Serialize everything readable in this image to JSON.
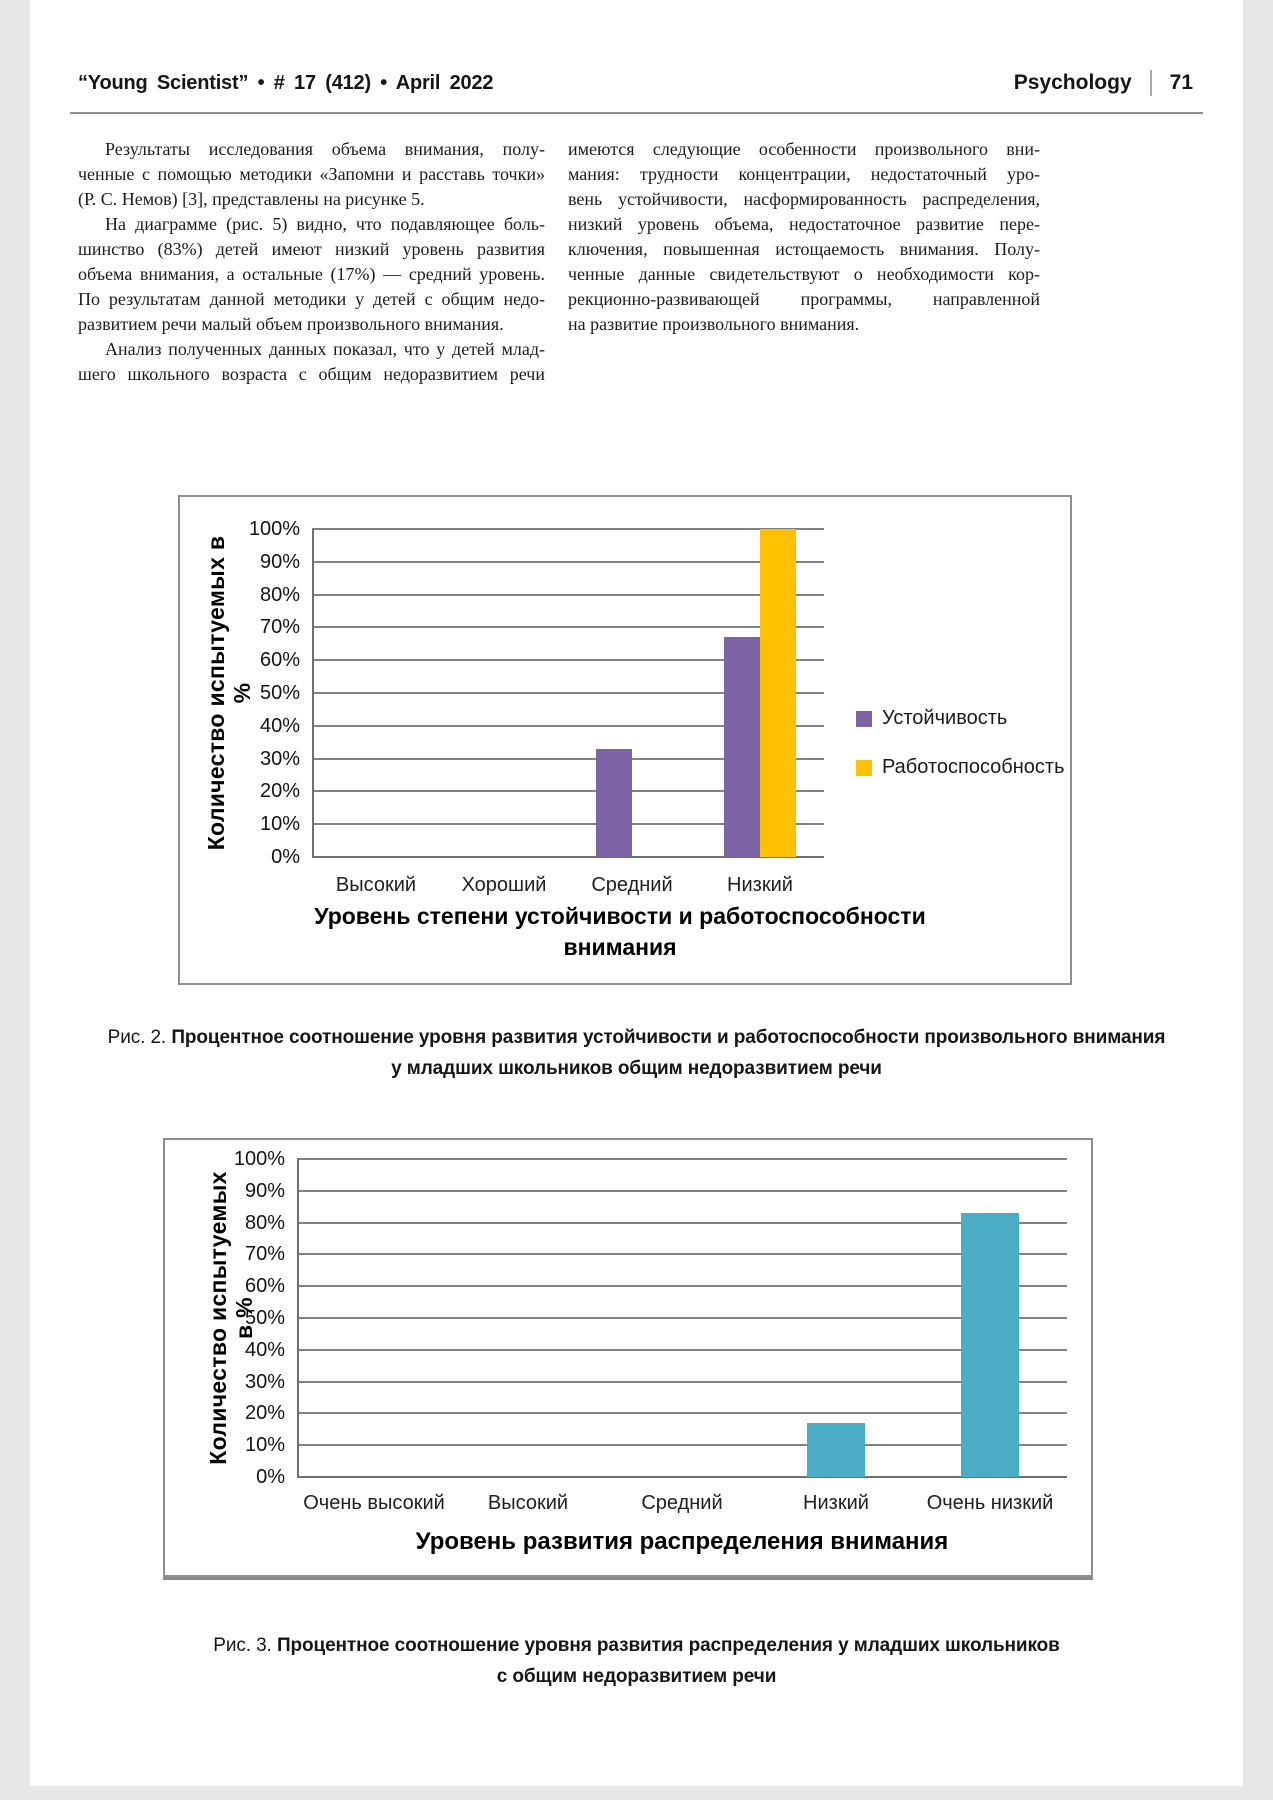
{
  "header": {
    "left": "“Young Scientist”  •  # 17 (412)  •  April 2022",
    "section": "Psychology",
    "page_number": "71"
  },
  "article": {
    "left_lines": [
      {
        "t": "Результаты исследования объема внимания, полу-",
        "ind": true
      },
      {
        "t": "ченные с помощью методики «Запомни и расставь точки»"
      },
      {
        "t": "(Р. С. Немов)  [3], представлены на рисунке 5.",
        "last": true
      },
      {
        "t": "На диаграмме (рис. 5) видно, что подавляющее боль-",
        "ind": true
      },
      {
        "t": "шинство (83%) детей имеют низкий уровень развития"
      },
      {
        "t": "объема внимания, а остальные (17%) — средний уровень."
      },
      {
        "t": "По результатам данной методики у детей с общим недо-"
      },
      {
        "t": "развитием речи малый объем произвольного внимания.",
        "last": true
      },
      {
        "t": "Анализ полученных данных показал, что у детей млад-",
        "ind": true
      },
      {
        "t": "шего школьного возраста с общим недоразвитием речи"
      }
    ],
    "right_lines": [
      {
        "t": "имеются следующие особенности произвольного вни-"
      },
      {
        "t": "мания: трудности концентрации, недостаточный уро-"
      },
      {
        "t": "вень устойчивости, насформированность распределения,"
      },
      {
        "t": "низкий уровень объема, недостаточное развитие пере-"
      },
      {
        "t": "ключения, повышенная истощаемость внимания. Полу-"
      },
      {
        "t": "ченные данные свидетельствуют о необходимости кор-"
      },
      {
        "t": "рекционно-развивающей программы, направленной"
      },
      {
        "t": "на развитие произвольного внимания.",
        "last": true
      }
    ]
  },
  "fig2": {
    "label": "Рис. 2.",
    "line1": "Процентное соотношение уровня развития устойчивости и работоспособности произвольного внимания",
    "line2": "у младших школьников общим недоразвитием речи"
  },
  "fig3": {
    "label": "Рис. 3.",
    "line1": "Процентное соотношение уровня развития распределения у младших школьников",
    "line2": "с общим недоразвитием речи"
  },
  "chart_data": [
    {
      "type": "bar",
      "categories": [
        "Высокий",
        "Хороший",
        "Средний",
        "Низкий"
      ],
      "series": [
        {
          "name": "Устойчивость",
          "color": "#7C64A4",
          "values": [
            0,
            0,
            33,
            67
          ]
        },
        {
          "name": "Работоспособность",
          "color": "#FFC000",
          "values": [
            0,
            0,
            0,
            100
          ]
        }
      ],
      "xlabel": "Уровень степени устойчивости и работоспособности внимания",
      "ylabel": "Количество испытуемых в %",
      "ylabel_lines": [
        "Количество испытуемых в",
        "%"
      ],
      "ylim": [
        0,
        100
      ],
      "ytick_step": 10,
      "ytick_suffix": "%",
      "grid": true,
      "legend_position": "right"
    },
    {
      "type": "bar",
      "categories": [
        "Очень высокий",
        "Высокий",
        "Средний",
        "Низкий",
        "Очень низкий"
      ],
      "series": [
        {
          "color": "#4BACC6",
          "values": [
            0,
            0,
            0,
            17,
            83
          ]
        }
      ],
      "xlabel": "Уровень развития распределения внимания",
      "ylabel": "Количество испытуемых в %",
      "ylabel_lines": [
        "Количество испытуемых",
        "в %"
      ],
      "ylim": [
        0,
        100
      ],
      "ytick_step": 10,
      "ytick_suffix": "%",
      "grid": true,
      "legend_position": "none"
    }
  ]
}
